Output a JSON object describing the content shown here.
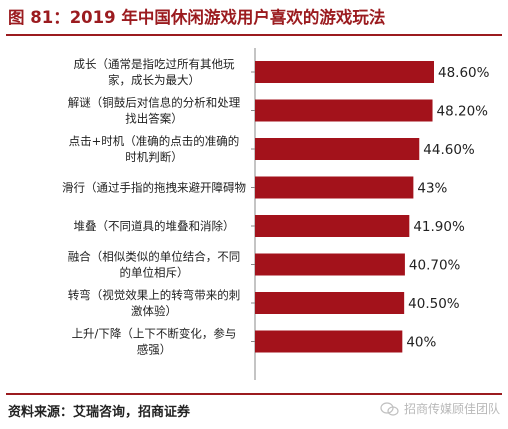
{
  "title": "图 81：2019 年中国休闲游戏用户喜欢的游戏玩法",
  "source": "资料来源：艾瑞咨询，招商证券",
  "watermark": "招商传媒顾佳团队",
  "colors": {
    "bar": "#a3121b",
    "title": "#9b1b1f"
  },
  "chart_data": {
    "type": "bar",
    "orientation": "horizontal",
    "categories": [
      [
        "成长（通常是指吃过所有其他玩",
        "家，成长为最大）"
      ],
      [
        "解谜（铜鼓后对信息的分析和处理",
        "找出答案）"
      ],
      [
        "点击+时机（准确的点击的准确的",
        "时机判断）"
      ],
      [
        "滑行（通过手指的拖拽来避开障碍物"
      ],
      [
        "堆叠（不同道具的堆叠和消除）"
      ],
      [
        "融合（相似类似的单位结合，不同",
        "的单位相斥）"
      ],
      [
        "转弯（视觉效果上的转弯带来的刺",
        "激体验）"
      ],
      [
        "上升/下降（上下不断变化，参与",
        "感强）"
      ]
    ],
    "values": [
      48.6,
      48.2,
      44.6,
      43,
      41.9,
      40.7,
      40.5,
      40
    ],
    "value_labels": [
      "48.60%",
      "48.20%",
      "44.60%",
      "43%",
      "41.90%",
      "40.70%",
      "40.50%",
      "40%"
    ],
    "unit": "%",
    "title": "图 81：2019 年中国休闲游戏用户喜欢的游戏玩法",
    "xlabel": "",
    "ylabel": "",
    "grid": false,
    "legend": "none"
  }
}
